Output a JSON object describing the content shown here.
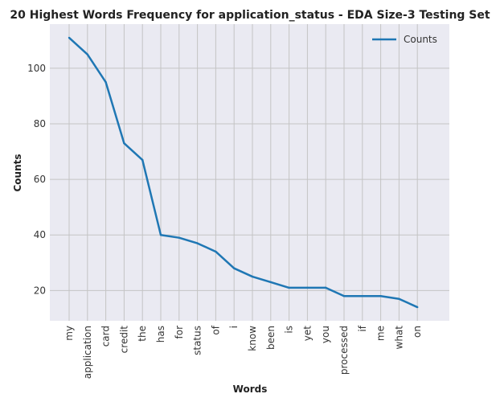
{
  "chart_data": {
    "type": "line",
    "title": "20 Highest Words Frequency for application_status - EDA Size-3 Testing Set",
    "xlabel": "Words",
    "ylabel": "Counts",
    "categories": [
      "my",
      "application",
      "card",
      "credit",
      "the",
      "has",
      "for",
      "status",
      "of",
      "i",
      "know",
      "been",
      "is",
      "yet",
      "you",
      "processed",
      "if",
      "me",
      "what",
      "on"
    ],
    "series": [
      {
        "name": "Counts",
        "values": [
          111,
          105,
          95,
          73,
          67,
          40,
          39,
          37,
          34,
          28,
          25,
          23,
          21,
          21,
          21,
          18,
          18,
          18,
          17,
          14
        ]
      }
    ],
    "ylim": [
      9.1,
      115.9
    ],
    "yticks": [
      20,
      40,
      60,
      80,
      100
    ],
    "grid": true,
    "legend": "top-right",
    "colors": {
      "line": "#1f77b4",
      "plot_bg": "#eaeaf2",
      "grid": "#c4c4c4"
    }
  }
}
